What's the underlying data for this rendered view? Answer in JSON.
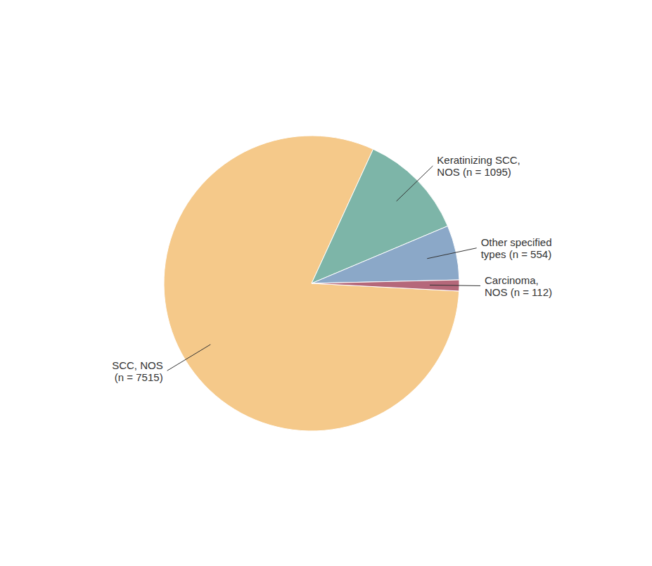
{
  "chart_data": {
    "type": "pie",
    "categories": [
      "SCC, NOS\n(n = 7515)",
      "Keratinizing SCC,\nNOS (n = 1095)",
      "Other specified\ntypes (n = 554)",
      "Carcinoma,\nNOS (n = 112)"
    ],
    "values": [
      7515,
      1095,
      554,
      112
    ],
    "colors": [
      "#F5C98A",
      "#7DB5A8",
      "#8BA8C8",
      "#B5687A"
    ]
  }
}
